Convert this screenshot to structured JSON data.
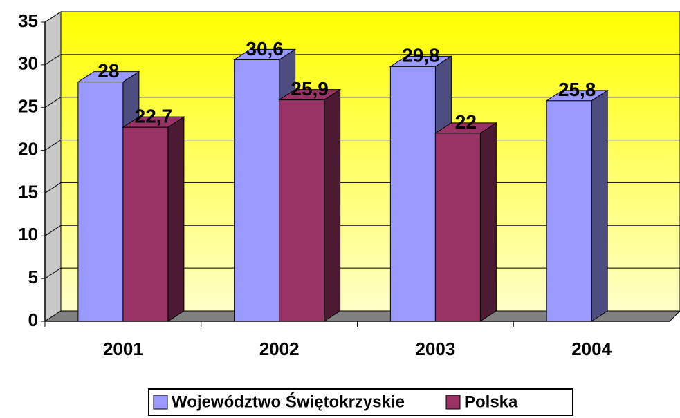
{
  "chart_data": {
    "type": "bar3d",
    "categories": [
      "2001",
      "2002",
      "2003",
      "2004"
    ],
    "series": [
      {
        "name": "Województwo Świętokrzyskie",
        "color": "#9999ff",
        "side_color": "#4d4d80",
        "values": [
          28,
          30.6,
          29.8,
          25.8
        ],
        "value_labels": [
          "28",
          "30,6",
          "29,8",
          "25,8"
        ]
      },
      {
        "name": "Polska",
        "color": "#993366",
        "side_color": "#4d1a33",
        "values": [
          22.7,
          25.9,
          22,
          null
        ],
        "value_labels": [
          "22,7",
          "25,9",
          "22",
          null
        ]
      }
    ],
    "ylim": [
      0,
      35
    ],
    "yticks": [
      0,
      5,
      10,
      15,
      20,
      25,
      30,
      35
    ],
    "grid": true,
    "legend": "bottom"
  }
}
